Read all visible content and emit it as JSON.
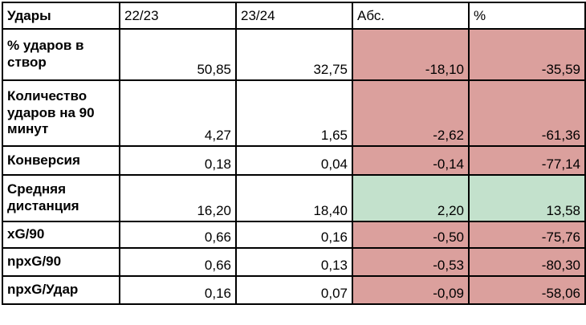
{
  "table": {
    "header": {
      "metric": "Удары",
      "season_prev": "22/23",
      "season_curr": "23/24",
      "abs": "Абс.",
      "pct": "%"
    },
    "rows": [
      {
        "label": "% ударов в створ",
        "season_prev": "50,85",
        "season_curr": "32,75",
        "abs": "-18,10",
        "pct": "-35,59",
        "trend": "negative"
      },
      {
        "label": "Количество ударов на 90 минут",
        "season_prev": "4,27",
        "season_curr": "1,65",
        "abs": "-2,62",
        "pct": "-61,36",
        "trend": "negative"
      },
      {
        "label": "Конверсия",
        "season_prev": "0,18",
        "season_curr": "0,04",
        "abs": "-0,14",
        "pct": "-77,14",
        "trend": "negative"
      },
      {
        "label": "Средняя дистанция",
        "season_prev": "16,20",
        "season_curr": "18,40",
        "abs": "2,20",
        "pct": "13,58",
        "trend": "positive"
      },
      {
        "label": "xG/90",
        "season_prev": "0,66",
        "season_curr": "0,16",
        "abs": "-0,50",
        "pct": "-75,76",
        "trend": "negative"
      },
      {
        "label": "npxG/90",
        "season_prev": "0,66",
        "season_curr": "0,13",
        "abs": "-0,53",
        "pct": "-80,30",
        "trend": "negative"
      },
      {
        "label": "npxG/Удар",
        "season_prev": "0,16",
        "season_curr": "0,07",
        "abs": "-0,09",
        "pct": "-58,06",
        "trend": "negative"
      }
    ]
  },
  "colors": {
    "negative_bg": "#dba09d",
    "positive_bg": "#c3e1cc",
    "border": "#000000",
    "background": "#ffffff"
  },
  "chart_data": {
    "type": "table",
    "title": "Удары",
    "columns": [
      "Удары",
      "22/23",
      "23/24",
      "Абс.",
      "%"
    ],
    "rows": [
      [
        "% ударов в створ",
        50.85,
        32.75,
        -18.1,
        -35.59
      ],
      [
        "Количество ударов на 90 минут",
        4.27,
        1.65,
        -2.62,
        -61.36
      ],
      [
        "Конверсия",
        0.18,
        0.04,
        -0.14,
        -77.14
      ],
      [
        "Средняя дистанция",
        16.2,
        18.4,
        2.2,
        13.58
      ],
      [
        "xG/90",
        0.66,
        0.16,
        -0.5,
        -75.76
      ],
      [
        "npxG/90",
        0.66,
        0.13,
        -0.53,
        -80.3
      ],
      [
        "npxG/Удар",
        0.16,
        0.07,
        -0.09,
        -58.06
      ]
    ],
    "notes": "Абс. and % delta cells are highlighted: negative = salmon red, positive = mint green; decimal comma formatting"
  }
}
